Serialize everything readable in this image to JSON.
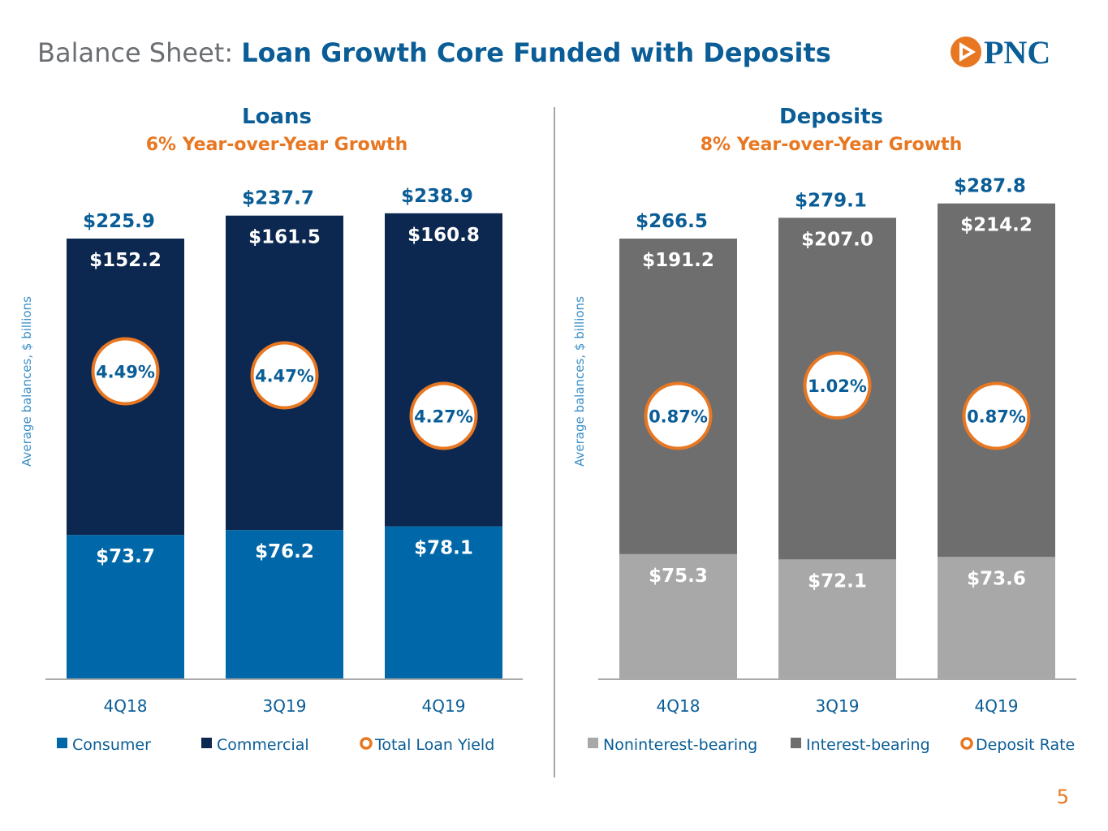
{
  "header": {
    "prefix": "Balance Sheet:",
    "title": "Loan Growth Core Funded with Deposits"
  },
  "logo": {
    "text": "PNC",
    "mark_color": "#e87722",
    "text_color": "#0a5d96"
  },
  "page_number": "5",
  "colors": {
    "blue_title": "#0a5d96",
    "orange": "#e87722",
    "consumer": "#0068a8",
    "commercial": "#0c2850",
    "noninterest": "#a8a8a8",
    "interest": "#6e6e6e",
    "axis": "#aaaaaa"
  },
  "chart_data": [
    {
      "type": "bar",
      "stacked": true,
      "title": "Loans",
      "subtitle": "6% Year-over-Year Growth",
      "ylabel": "Average balances, $ billions",
      "categories": [
        "4Q18",
        "3Q19",
        "4Q19"
      ],
      "series": [
        {
          "name": "Consumer",
          "color": "#0068a8",
          "values": [
            73.7,
            76.2,
            78.1
          ],
          "labels": [
            "$73.7",
            "$76.2",
            "$78.1"
          ]
        },
        {
          "name": "Commercial",
          "color": "#0c2850",
          "values": [
            152.2,
            161.5,
            160.8
          ],
          "labels": [
            "$152.2",
            "$161.5",
            "$160.8"
          ]
        }
      ],
      "totals": [
        225.9,
        237.7,
        238.9
      ],
      "total_labels": [
        "$225.9",
        "$237.7",
        "$238.9"
      ],
      "rate_name": "Total Loan Yield",
      "rates": [
        4.49,
        4.47,
        4.27
      ],
      "rate_labels": [
        "4.49%",
        "4.47%",
        "4.27%"
      ],
      "rate_range": [
        4.0,
        4.6
      ],
      "ylim": [
        0,
        250
      ],
      "grid": false
    },
    {
      "type": "bar",
      "stacked": true,
      "title": "Deposits",
      "subtitle": "8% Year-over-Year Growth",
      "ylabel": "Average balances, $ billions",
      "categories": [
        "4Q18",
        "3Q19",
        "4Q19"
      ],
      "series": [
        {
          "name": "Noninterest-bearing",
          "color": "#a8a8a8",
          "values": [
            75.3,
            72.1,
            73.6
          ],
          "labels": [
            "$75.3",
            "$72.1",
            "$73.6"
          ]
        },
        {
          "name": "Interest-bearing",
          "color": "#6e6e6e",
          "values": [
            191.2,
            207.0,
            214.2
          ],
          "labels": [
            "$191.2",
            "$207.0",
            "$214.2"
          ]
        }
      ],
      "totals": [
        266.5,
        279.1,
        287.8
      ],
      "total_labels": [
        "$266.5",
        "$279.1",
        "$287.8"
      ],
      "rate_name": "Deposit Rate",
      "rates": [
        0.87,
        1.02,
        0.87
      ],
      "rate_labels": [
        "0.87%",
        "1.02%",
        "0.87%"
      ],
      "rate_range": [
        0.6,
        1.2
      ],
      "ylim": [
        0,
        300
      ],
      "grid": false
    }
  ]
}
